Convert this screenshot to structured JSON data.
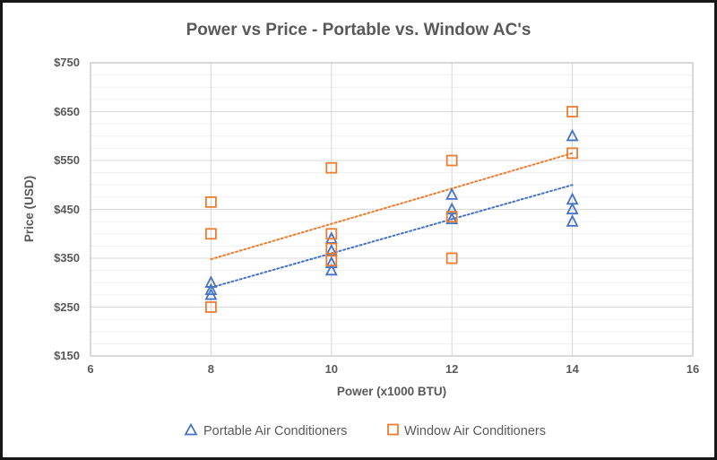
{
  "title": "Power vs Price - Portable vs. Window AC's",
  "chart_data": {
    "type": "scatter",
    "title": "Power vs Price - Portable vs. Window AC's",
    "xlabel": "Power (x1000 BTU)",
    "ylabel": "Price (USD)",
    "xlim": [
      6,
      16
    ],
    "ylim": [
      150,
      750
    ],
    "x_ticks": [
      6,
      8,
      10,
      12,
      14,
      16
    ],
    "x_tick_labels": [
      "6",
      "8",
      "10",
      "12",
      "14",
      "16"
    ],
    "y_ticks": [
      150,
      250,
      350,
      450,
      550,
      650,
      750
    ],
    "y_tick_labels": [
      "$150",
      "$250",
      "$350",
      "$450",
      "$550",
      "$650",
      "$750"
    ],
    "y_minor_step": 25,
    "grid": "major-x, major-y, minor-y",
    "legend_position": "bottom",
    "colors": {
      "grid_major": "#D9D9D9",
      "grid_minor": "#F0F0F0",
      "plot_border": "#C6C6C6",
      "text": "#595959",
      "portable_blue": "#4472C4",
      "window_orange": "#ED7D31"
    },
    "series": [
      {
        "name": "Portable Air Conditioners",
        "marker": "triangle",
        "color": "#4472C4",
        "points": [
          [
            8,
            300
          ],
          [
            8,
            285
          ],
          [
            8,
            275
          ],
          [
            10,
            390
          ],
          [
            10,
            365
          ],
          [
            10,
            340
          ],
          [
            10,
            325
          ],
          [
            12,
            480
          ],
          [
            12,
            450
          ],
          [
            12,
            430
          ],
          [
            14,
            600
          ],
          [
            14,
            470
          ],
          [
            14,
            450
          ],
          [
            14,
            425
          ]
        ],
        "trendline": {
          "style": "dotted",
          "x1": 8,
          "y1": 290,
          "x2": 14,
          "y2": 500
        }
      },
      {
        "name": "Window Air Conditioners",
        "marker": "square",
        "color": "#ED7D31",
        "points": [
          [
            8,
            465
          ],
          [
            8,
            400
          ],
          [
            8,
            250
          ],
          [
            10,
            535
          ],
          [
            10,
            400
          ],
          [
            10,
            370
          ],
          [
            10,
            345
          ],
          [
            12,
            550
          ],
          [
            12,
            435
          ],
          [
            12,
            350
          ],
          [
            14,
            650
          ],
          [
            14,
            565
          ]
        ],
        "trendline": {
          "style": "dotted",
          "x1": 8,
          "y1": 348,
          "x2": 14,
          "y2": 565
        }
      }
    ]
  }
}
